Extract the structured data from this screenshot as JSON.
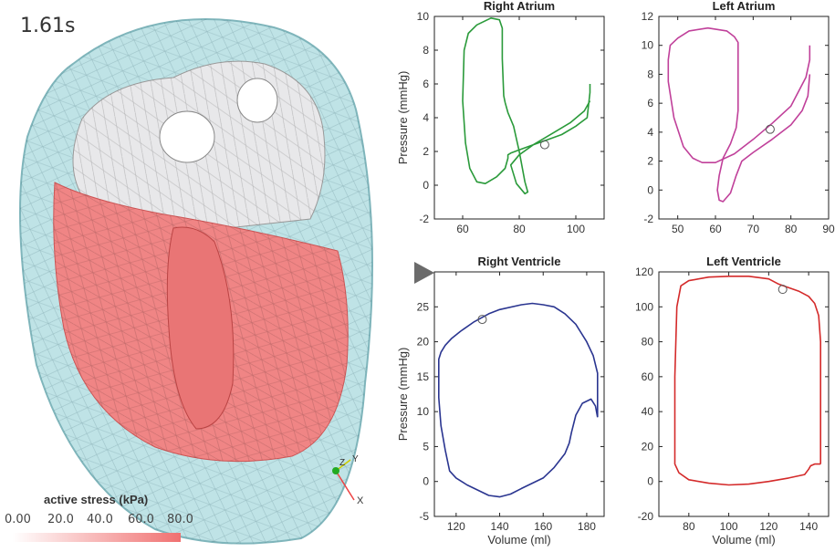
{
  "time_label": "1.61s",
  "colorbar": {
    "title": "active stress (kPa)",
    "ticks": [
      "0.00",
      "20.0",
      "40.0",
      "60.0",
      "80.0"
    ],
    "color_low": "#ffffff",
    "color_high": "#f07070"
  },
  "axes_triad": {
    "x": "X",
    "y": "Y",
    "z": "Z"
  },
  "chart_data": [
    {
      "type": "line",
      "title": "Right Atrium",
      "xlabel": "",
      "ylabel": "Pressure (mmHg)",
      "xlim": [
        50,
        110
      ],
      "ylim": [
        -2,
        10
      ],
      "xticks": [
        "60",
        "80",
        "100"
      ],
      "yticks": [
        "-2",
        "0",
        "2",
        "4",
        "6",
        "8",
        "10"
      ],
      "color": "#2a9a3a",
      "series": [
        {
          "x": [
            105,
            103,
            98,
            92,
            85,
            80,
            77,
            79,
            82,
            83,
            82,
            80,
            78,
            76,
            75,
            74.5,
            74,
            74,
            73,
            70,
            65,
            62,
            60.5,
            60,
            61,
            62.5,
            65,
            68,
            72,
            75,
            76,
            76,
            77,
            80,
            85,
            90,
            95,
            100,
            104,
            105,
            105
          ],
          "y": [
            5.0,
            4.4,
            3.7,
            3.1,
            2.4,
            1.8,
            1.2,
            0.1,
            -0.5,
            -0.4,
            0.2,
            2.0,
            3.5,
            4.3,
            4.9,
            5.3,
            7.5,
            9.3,
            9.8,
            9.9,
            9.5,
            9.0,
            8.0,
            5.0,
            2.5,
            1.0,
            0.2,
            0.1,
            0.5,
            1.0,
            1.6,
            1.8,
            1.9,
            2.1,
            2.4,
            2.7,
            3.0,
            3.5,
            4.0,
            5.5,
            6.0
          ]
        }
      ],
      "marker": {
        "x": 89,
        "y": 2.4
      }
    },
    {
      "type": "line",
      "title": "Left Atrium",
      "xlabel": "",
      "ylabel": "",
      "xlim": [
        45,
        90
      ],
      "ylim": [
        -2,
        12
      ],
      "xticks": [
        "50",
        "60",
        "70",
        "80",
        "90"
      ],
      "yticks": [
        "-2",
        "0",
        "2",
        "4",
        "6",
        "8",
        "10",
        "12"
      ],
      "color": "#c0409a",
      "series": [
        {
          "x": [
            85,
            84.5,
            83,
            80,
            75,
            70,
            67,
            65.5,
            64,
            62,
            61,
            60.5,
            61,
            62,
            64,
            65.5,
            66,
            66,
            65,
            63,
            58,
            53,
            50,
            48,
            47.5,
            47.5,
            49,
            51.5,
            54,
            56.5,
            60,
            65,
            70,
            75,
            80,
            84,
            85,
            85
          ],
          "y": [
            8.0,
            6.5,
            5.5,
            4.5,
            3.5,
            2.6,
            2.0,
            1.0,
            -0.2,
            -0.8,
            -0.7,
            0.0,
            1.0,
            2.2,
            3.2,
            4.3,
            5.5,
            10.2,
            10.6,
            11.0,
            11.2,
            11.0,
            10.5,
            10.0,
            9.0,
            7.5,
            5.0,
            3.0,
            2.2,
            1.9,
            1.9,
            2.5,
            3.5,
            4.6,
            5.8,
            7.8,
            9.0,
            10.0
          ]
        }
      ],
      "marker": {
        "x": 74.5,
        "y": 4.2
      }
    },
    {
      "type": "line",
      "title": "Right Ventricle",
      "xlabel": "Volume (ml)",
      "ylabel": "Pressure (mmHg)",
      "xlim": [
        110,
        188
      ],
      "ylim": [
        -5,
        30
      ],
      "xticks": [
        "120",
        "140",
        "160",
        "180"
      ],
      "yticks": [
        "-5",
        "0",
        "5",
        "10",
        "15",
        "20",
        "25"
      ],
      "color": "#2a3590",
      "series": [
        {
          "x": [
            185,
            184,
            182,
            178,
            175,
            173,
            172,
            170,
            165,
            160,
            150,
            145,
            140,
            135,
            125,
            120,
            117,
            115,
            113,
            112,
            112,
            112,
            113,
            115,
            118,
            122,
            128,
            135,
            140,
            150,
            155,
            160,
            165,
            170,
            175,
            180,
            183,
            185,
            185,
            185
          ],
          "y": [
            9.2,
            10.8,
            11.8,
            11.2,
            9.5,
            7.0,
            5.5,
            4.0,
            2.0,
            0.5,
            -1.0,
            -1.8,
            -2.2,
            -2.0,
            -0.5,
            0.5,
            1.5,
            4.5,
            8.0,
            12.0,
            16.0,
            17.5,
            18.5,
            19.5,
            20.5,
            21.5,
            22.8,
            24.0,
            24.6,
            25.3,
            25.5,
            25.3,
            25.0,
            24.0,
            22.5,
            20.0,
            18.0,
            15.5,
            11.0,
            9.2
          ]
        }
      ],
      "marker": {
        "x": 132,
        "y": 23.2
      }
    },
    {
      "type": "line",
      "title": "Left Ventricle",
      "xlabel": "Volume (ml)",
      "ylabel": "",
      "xlim": [
        65,
        150
      ],
      "ylim": [
        -20,
        120
      ],
      "xticks": [
        "80",
        "100",
        "120",
        "140"
      ],
      "yticks": [
        "-20",
        "0",
        "20",
        "40",
        "60",
        "80",
        "100",
        "120"
      ],
      "color": "#d42a2a",
      "series": [
        {
          "x": [
            146,
            146,
            145,
            143,
            140,
            135,
            130,
            125,
            120,
            110,
            100,
            90,
            80,
            76,
            74,
            73,
            73,
            73,
            75,
            80,
            90,
            100,
            110,
            120,
            130,
            138,
            140,
            141,
            143,
            146,
            146
          ],
          "y": [
            10,
            80,
            95,
            102,
            106,
            109,
            111,
            113,
            116,
            117.5,
            117.5,
            117,
            115,
            112,
            100,
            60,
            20,
            10,
            5,
            1,
            -1,
            -2,
            -1.5,
            0,
            2,
            4,
            7,
            9,
            10,
            10,
            10
          ]
        }
      ],
      "marker": {
        "x": 127,
        "y": 110
      }
    }
  ]
}
